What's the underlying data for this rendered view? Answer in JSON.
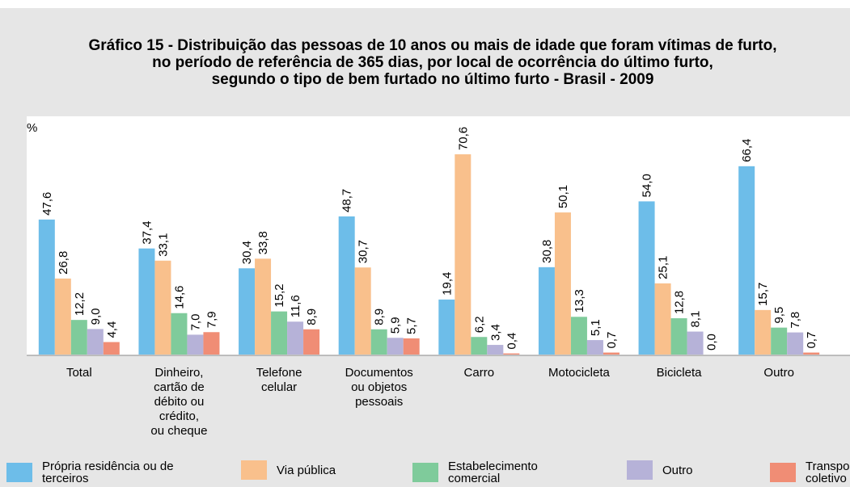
{
  "chart_data": {
    "type": "bar",
    "title": [
      "Gráfico 15 - Distribuição das pessoas de 10 anos ou mais de idade que foram vítimas de furto,",
      "no período de referência de 365 dias, por local de ocorrência do último furto,",
      "segundo o tipo de bem furtado no último furto - Brasil - 2009"
    ],
    "y_label": "%",
    "categories": [
      [
        "Total"
      ],
      [
        "Dinheiro,",
        "cartão de",
        "débito ou",
        "crédito,",
        "ou cheque"
      ],
      [
        "Telefone",
        "celular"
      ],
      [
        "Documentos",
        "ou objetos",
        "pessoais"
      ],
      [
        "Carro"
      ],
      [
        "Motocicleta"
      ],
      [
        "Bicicleta"
      ],
      [
        "Outro"
      ]
    ],
    "ylim": [
      0,
      84
    ],
    "series": [
      {
        "name": "Própria residência ou de terceiros",
        "color": "#6dbde9",
        "values": [
          47.6,
          37.4,
          30.4,
          48.7,
          19.4,
          30.8,
          54.0,
          66.4
        ],
        "value_labels": [
          "47,6",
          "37,4",
          "30,4",
          "48,7",
          "19,4",
          "30,8",
          "54,0",
          "66,4"
        ]
      },
      {
        "name": "Via pública",
        "color": "#f9c08c",
        "values": [
          26.8,
          33.1,
          33.8,
          30.7,
          70.6,
          50.1,
          25.1,
          15.7
        ],
        "value_labels": [
          "26,8",
          "33,1",
          "33,8",
          "30,7",
          "70,6",
          "50,1",
          "25,1",
          "15,7"
        ]
      },
      {
        "name": "Estabelecimento comercial",
        "color": "#7fcb9b",
        "values": [
          12.2,
          14.6,
          15.2,
          8.9,
          6.2,
          13.3,
          12.8,
          9.5
        ],
        "value_labels": [
          "12,2",
          "14,6",
          "15,2",
          "8,9",
          "6,2",
          "13,3",
          "12,8",
          "9,5"
        ]
      },
      {
        "name": "Outro",
        "color": "#b6b2d8",
        "values": [
          9.0,
          7.0,
          11.6,
          5.9,
          3.4,
          5.1,
          8.1,
          7.8
        ],
        "value_labels": [
          "9,0",
          "7,0",
          "11,6",
          "5,9",
          "3,4",
          "5,1",
          "8,1",
          "7,8"
        ]
      },
      {
        "name": "Transporte coletivo",
        "color": "#f08d75",
        "values": [
          4.4,
          7.9,
          8.9,
          5.7,
          0.4,
          0.7,
          0.0,
          0.7
        ],
        "value_labels": [
          "4,4",
          "7,9",
          "8,9",
          "5,7",
          "0,4",
          "0,7",
          "0,0",
          "0,7"
        ]
      }
    ]
  }
}
